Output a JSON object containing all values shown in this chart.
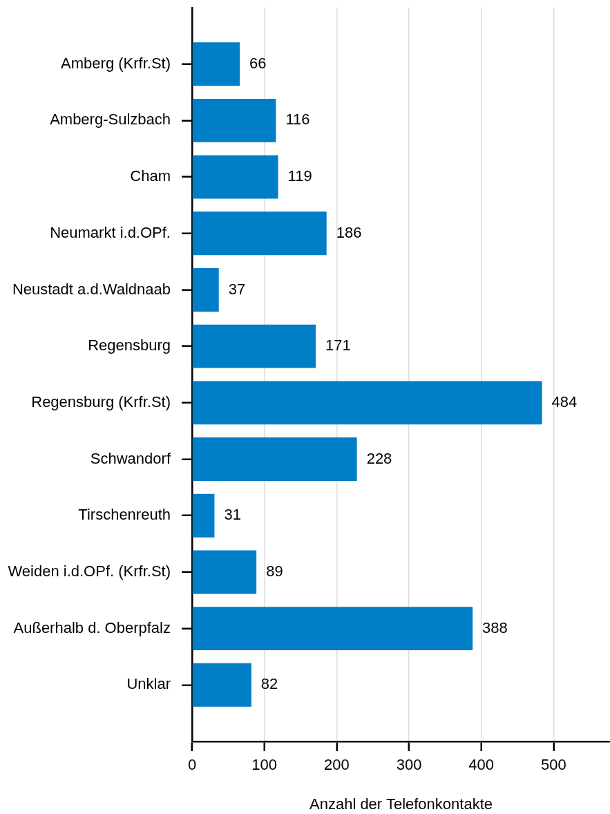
{
  "chart_data": {
    "type": "bar",
    "orientation": "horizontal",
    "xlabel": "Anzahl der Telefonkontakte",
    "categories": [
      "Amberg (Krfr.St)",
      "Amberg-Sulzbach",
      "Cham",
      "Neumarkt i.d.OPf.",
      "Neustadt a.d.Waldnaab",
      "Regensburg",
      "Regensburg (Krfr.St)",
      "Schwandorf",
      "Tirschenreuth",
      "Weiden i.d.OPf. (Krfr.St)",
      "Außerhalb d. Oberpfalz",
      "Unklar"
    ],
    "values": [
      66,
      116,
      119,
      186,
      37,
      171,
      484,
      228,
      31,
      89,
      388,
      82
    ],
    "color": "#007ec7",
    "xlim": [
      0,
      578
    ],
    "xticks": [
      0,
      100,
      200,
      300,
      400,
      500
    ],
    "grid": "x",
    "data_labels": true
  }
}
